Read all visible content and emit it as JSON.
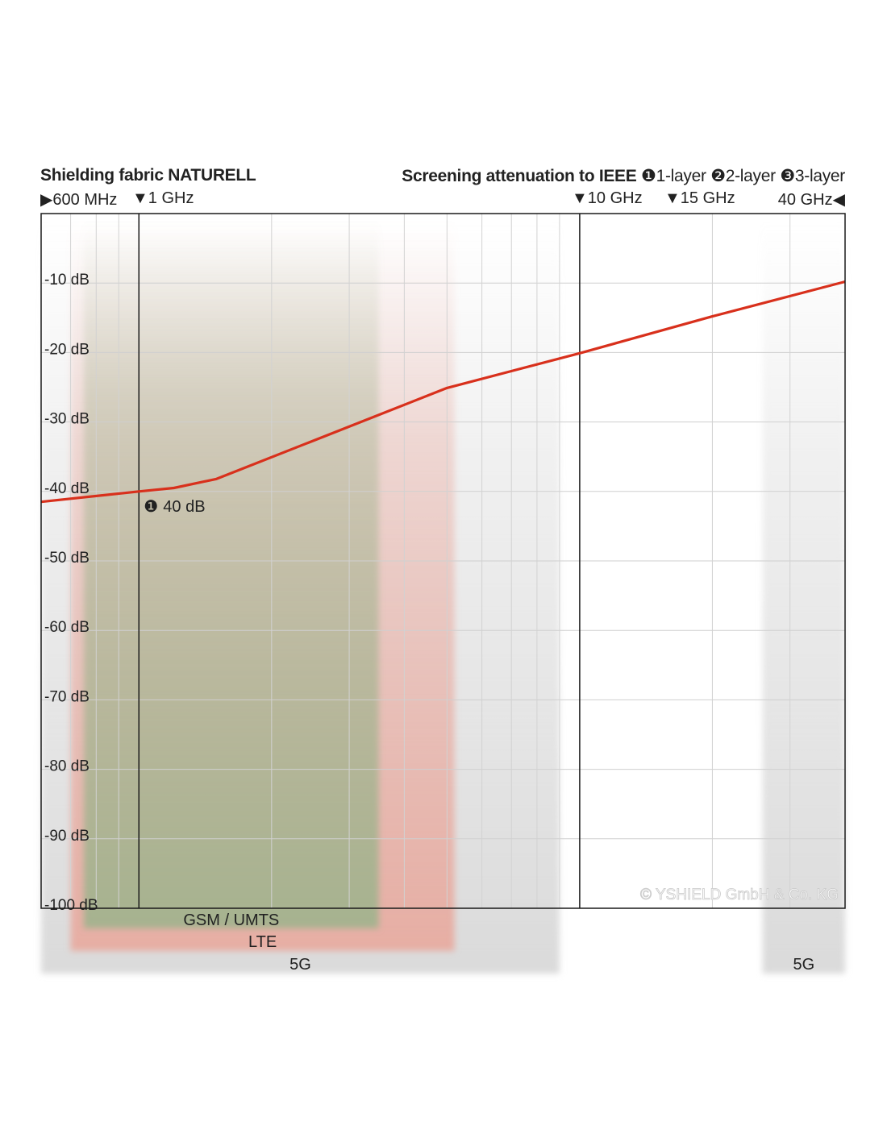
{
  "header": {
    "title": "Shielding fabric NATURELL",
    "subtitle_bold": "Screening attenuation to IEEE",
    "layer_1": "1-layer",
    "layer_2": "2-layer",
    "layer_3": "3-layer",
    "layer_1_glyph": "❶",
    "layer_2_glyph": "❷",
    "layer_3_glyph": "❸"
  },
  "markers": {
    "m600": "600 MHz",
    "m1": "1 GHz",
    "m10": "10 GHz",
    "m15": "15 GHz",
    "m40": "40 GHz"
  },
  "chart_data": {
    "type": "line",
    "x_scale": "log",
    "x_unit": "GHz",
    "xlim": [
      0.6,
      40
    ],
    "ylim": [
      -100,
      0
    ],
    "y_ticks": [
      -10,
      -20,
      -30,
      -40,
      -50,
      -60,
      -70,
      -80,
      -90,
      -100
    ],
    "y_tick_labels": [
      "-10 dB",
      "-20 dB",
      "-30 dB",
      "-40 dB",
      "-50 dB",
      "-60 dB",
      "-70 dB",
      "-80 dB",
      "-90 dB",
      "-100 dB"
    ],
    "reference_lines_x": [
      1,
      10
    ],
    "series": [
      {
        "color": "#d8301c",
        "x": [
          0.6,
          1,
          1.2,
          1.5,
          5,
          10,
          20,
          40
        ],
        "y": [
          -41.5,
          -40,
          -39.5,
          -38.2,
          -25.1,
          -20.1,
          -14.8,
          -9.8
        ]
      }
    ],
    "annotation": {
      "glyph": "❶",
      "text": "40 dB",
      "x": 1,
      "y": -40
    },
    "bands": [
      {
        "label": "GSM / UMTS",
        "from": 0.75,
        "to": 3.5,
        "color": "#9fb38d"
      },
      {
        "label": "LTE",
        "from": 0.7,
        "to": 5.2,
        "color": "#e9a69a"
      },
      {
        "label": "5G",
        "from": 0.6,
        "to": 9.0,
        "color": "#d6d6d6"
      },
      {
        "label": "5G",
        "from": 26.0,
        "to": 40,
        "color": "#d6d6d6"
      }
    ],
    "watermark": "© YSHIELD GmbH & Co. KG"
  }
}
